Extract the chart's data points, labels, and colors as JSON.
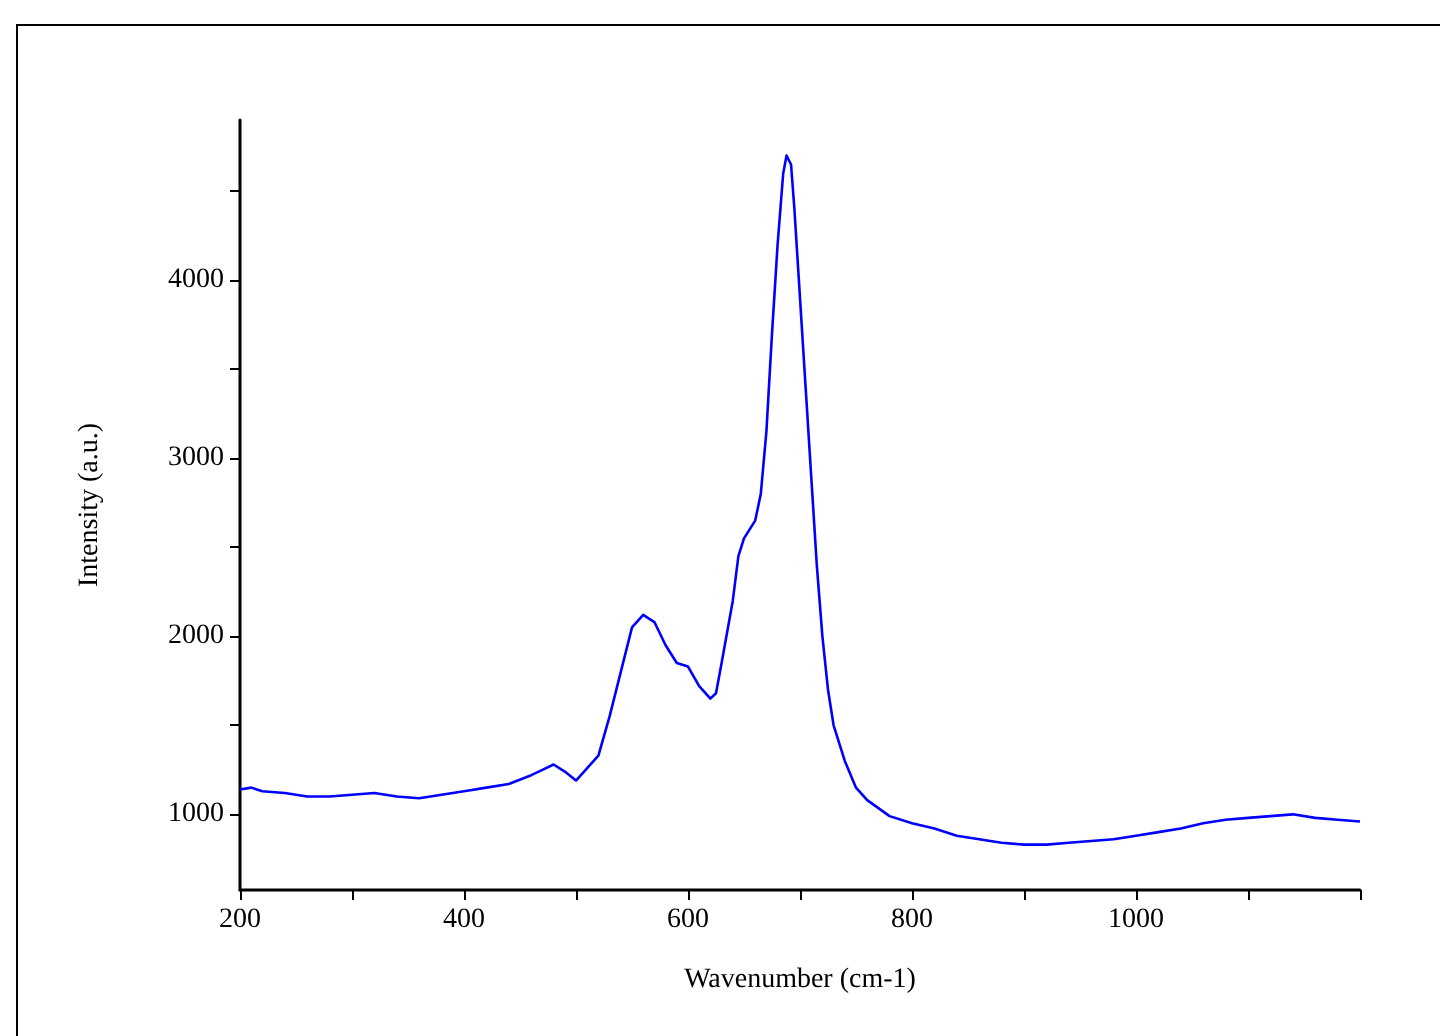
{
  "chart_data": {
    "type": "line",
    "xlabel": "Wavenumber (cm-1)",
    "ylabel": "Intensity (a.u.)",
    "grid": false,
    "marker": "none",
    "line_style": "solid",
    "xlim": [
      200,
      1200
    ],
    "ylim": [
      575,
      4900
    ],
    "xticks": [
      200,
      {
        "value": 300,
        "label": null
      },
      400,
      {
        "value": 500,
        "label": null
      },
      600,
      {
        "value": 700,
        "label": null
      },
      800,
      {
        "value": 900,
        "label": null
      },
      1000,
      {
        "value": 1100,
        "label": null
      },
      {
        "value": 1200,
        "label": null
      }
    ],
    "yticks": [
      1000,
      {
        "value": 1500,
        "label": null
      },
      2000,
      {
        "value": 2500,
        "label": null
      },
      3000,
      {
        "value": 3500,
        "label": null
      },
      4000,
      {
        "value": 4500,
        "label": null
      }
    ],
    "series": [
      {
        "color": "#0000ff",
        "x": [
          200,
          210,
          220,
          240,
          260,
          280,
          300,
          320,
          340,
          360,
          380,
          400,
          420,
          440,
          460,
          470,
          480,
          490,
          500,
          510,
          520,
          530,
          540,
          550,
          560,
          570,
          580,
          590,
          600,
          610,
          620,
          625,
          630,
          640,
          645,
          650,
          660,
          665,
          670,
          675,
          680,
          685,
          688,
          692,
          695,
          700,
          705,
          710,
          715,
          720,
          725,
          730,
          740,
          750,
          760,
          780,
          800,
          820,
          840,
          860,
          880,
          900,
          920,
          940,
          960,
          980,
          1000,
          1020,
          1040,
          1060,
          1080,
          1100,
          1120,
          1140,
          1160,
          1180,
          1200
        ],
        "values": [
          1140,
          1150,
          1130,
          1120,
          1100,
          1100,
          1110,
          1120,
          1100,
          1090,
          1110,
          1130,
          1150,
          1170,
          1220,
          1250,
          1280,
          1240,
          1190,
          1260,
          1330,
          1550,
          1800,
          2050,
          2120,
          2080,
          1950,
          1850,
          1830,
          1720,
          1650,
          1680,
          1850,
          2200,
          2450,
          2550,
          2650,
          2800,
          3150,
          3700,
          4200,
          4600,
          4700,
          4650,
          4400,
          3900,
          3400,
          2900,
          2400,
          2000,
          1700,
          1500,
          1300,
          1150,
          1080,
          990,
          950,
          920,
          880,
          860,
          840,
          830,
          830,
          840,
          850,
          860,
          880,
          900,
          920,
          950,
          970,
          980,
          990,
          1000,
          980,
          970,
          960
        ]
      }
    ]
  }
}
